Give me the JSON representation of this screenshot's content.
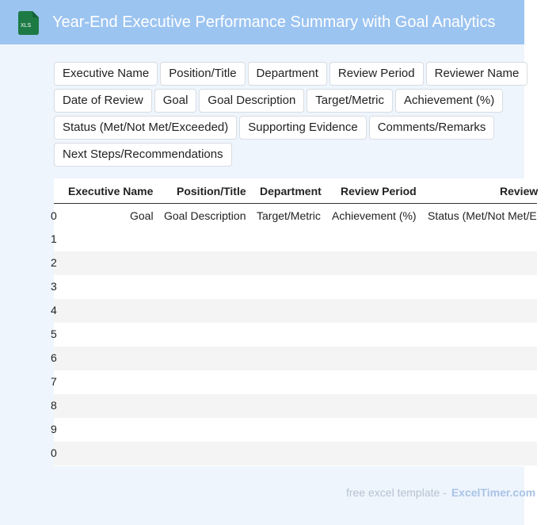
{
  "header": {
    "title": "Year-End Executive Performance Summary with Goal Analytics",
    "icon_label": "XLS"
  },
  "tags": [
    "Executive Name",
    "Position/Title",
    "Department",
    "Review Period",
    "Reviewer Name",
    "Date of Review",
    "Goal",
    "Goal Description",
    "Target/Metric",
    "Achievement (%)",
    "Status (Met/Not Met/Exceeded)",
    "Supporting Evidence",
    "Comments/Remarks",
    "Next Steps/Recommendations"
  ],
  "table": {
    "columns": [
      "Executive Name",
      "Position/Title",
      "Department",
      "Review Period",
      "Review"
    ],
    "row0": {
      "num": "0",
      "cells": [
        "Goal",
        "Goal Description",
        "Target/Metric",
        "Achievement (%)",
        "Status (Met/Not Met/E"
      ]
    },
    "row_numbers": [
      "1",
      "2",
      "3",
      "4",
      "5",
      "6",
      "7",
      "8",
      "9",
      "0"
    ]
  },
  "footer": {
    "text": "free excel template -",
    "brand": "ExcelTimer.com"
  },
  "colors": {
    "header_bg": "#9cc4f0",
    "frame_bg": "#eef5fd",
    "icon_green": "#1d7a45"
  }
}
